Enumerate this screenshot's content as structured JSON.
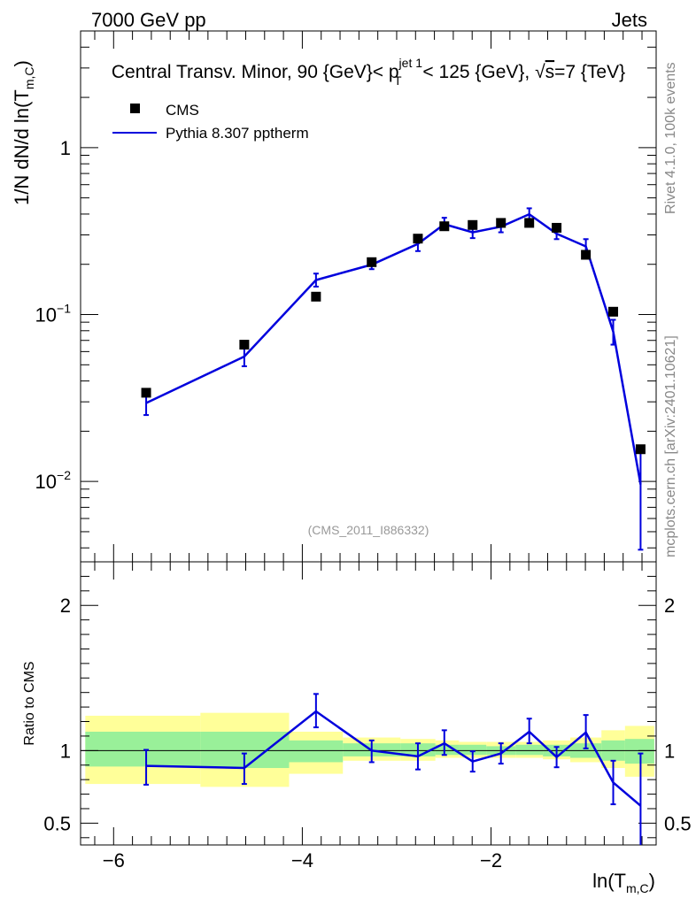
{
  "chart_data": [
    {
      "type": "scatter",
      "panel": "main",
      "header_left": "7000 GeV pp",
      "header_right": "Jets",
      "title": "Central Transv. Minor, 90 {GeV}< p_T^{jet 1} < 125 {GeV}, √s=7 {TeV}",
      "title_parts": {
        "before": "Central Transv. Minor, 90 {GeV}< p",
        "sup": "jet 1",
        "sub": "T",
        "after": " < 125 {GeV}, ",
        "sqrt_sign": "√",
        "sqrt_arg": "s",
        "end": "=7 {TeV}"
      },
      "ylabel": "1/N   dN/d ln(T_{m,C})",
      "ylabel_parts": {
        "main": "1/N    dN/d ln(T",
        "sub": "m,C",
        "close": ")"
      },
      "yscale": "log",
      "ylim": [
        0.0033,
        5.0
      ],
      "xlim": [
        -6.35,
        -0.25
      ],
      "ytick_labels": [
        {
          "value": 1,
          "label": "1",
          "exp": ""
        },
        {
          "value": 0.1,
          "label": "10",
          "exp": "−1"
        },
        {
          "value": 0.01,
          "label": "10",
          "exp": "−2"
        }
      ],
      "legend": {
        "placement": "top-left",
        "entries": [
          "CMS",
          "Pythia 8.307 pptherm"
        ]
      },
      "watermark": "(CMS_2011_I886332)",
      "side_text_top": "Rivet 4.1.0,  100k events",
      "side_text_bottom": "mcplots.cern.ch [arXiv:2401.10621]",
      "series": [
        {
          "name": "CMS",
          "style": "square-markers",
          "color": "#000000",
          "x": [
            -5.655,
            -4.615,
            -3.855,
            -3.265,
            -2.775,
            -2.495,
            -2.195,
            -1.895,
            -1.595,
            -1.305,
            -0.995,
            -0.705,
            -0.415
          ],
          "y": [
            0.034,
            0.066,
            0.128,
            0.206,
            0.285,
            0.338,
            0.344,
            0.354,
            0.354,
            0.331,
            0.228,
            0.104,
            0.0156
          ]
        },
        {
          "name": "Pythia 8.307 pptherm",
          "style": "line",
          "color": "#0000dd",
          "x": [
            -5.655,
            -4.615,
            -3.855,
            -3.265,
            -2.775,
            -2.495,
            -2.195,
            -1.895,
            -1.595,
            -1.305,
            -0.995,
            -0.705,
            -0.415
          ],
          "y": [
            0.0295,
            0.056,
            0.161,
            0.199,
            0.265,
            0.348,
            0.311,
            0.336,
            0.399,
            0.305,
            0.256,
            0.079,
            0.0096
          ],
          "err_lo": [
            0.0045,
            0.007,
            0.014,
            0.012,
            0.025,
            0.022,
            0.024,
            0.025,
            0.03,
            0.022,
            0.025,
            0.013,
            0.0057
          ],
          "err_hi": [
            0.0055,
            0.008,
            0.015,
            0.018,
            0.024,
            0.032,
            0.027,
            0.027,
            0.034,
            0.024,
            0.027,
            0.014,
            0.006
          ]
        }
      ]
    },
    {
      "type": "line",
      "panel": "ratio",
      "ylabel": "Ratio to CMS",
      "xlabel": "ln(T_{m,C})",
      "xlabel_parts": {
        "main": "ln(T",
        "sub": "m,C",
        "close": ")"
      },
      "ylim": [
        0.35,
        2.3
      ],
      "xlim": [
        -6.35,
        -0.25
      ],
      "xticks": [
        -6,
        -4,
        -2
      ],
      "xtick_labels": [
        "−6",
        "−4",
        "−2"
      ],
      "yticks": [
        0.5,
        1,
        2
      ],
      "ytick_labels": [
        "0.5",
        "1",
        "2"
      ],
      "bands": {
        "edges": [
          -6.3,
          -5.08,
          -4.14,
          -3.57,
          -2.96,
          -2.59,
          -2.34,
          -2.05,
          -1.74,
          -1.45,
          -1.16,
          -0.83,
          -0.58,
          -0.27
        ],
        "yellow_lo": [
          0.77,
          0.75,
          0.84,
          0.93,
          0.93,
          0.95,
          0.95,
          0.95,
          0.95,
          0.94,
          0.92,
          0.88,
          0.82
        ],
        "yellow_hi": [
          1.24,
          1.26,
          1.13,
          1.09,
          1.08,
          1.07,
          1.06,
          1.06,
          1.06,
          1.07,
          1.09,
          1.14,
          1.17
        ],
        "green_lo": [
          0.89,
          0.88,
          0.92,
          0.96,
          0.96,
          0.97,
          0.97,
          0.97,
          0.97,
          0.96,
          0.95,
          0.93,
          0.91
        ],
        "green_hi": [
          1.13,
          1.13,
          1.07,
          1.05,
          1.05,
          1.04,
          1.04,
          1.03,
          1.04,
          1.04,
          1.05,
          1.07,
          1.08
        ],
        "yellow_color": "#ffff99",
        "green_color": "#99f099"
      },
      "series": [
        {
          "name": "Pythia 8.307 pptherm",
          "color": "#0000dd",
          "x": [
            -5.655,
            -4.615,
            -3.855,
            -3.265,
            -2.775,
            -2.495,
            -2.195,
            -1.895,
            -1.595,
            -1.305,
            -0.995,
            -0.705,
            -0.415
          ],
          "y": [
            0.895,
            0.88,
            1.27,
            1.0,
            0.96,
            1.05,
            0.925,
            0.98,
            1.13,
            0.955,
            1.125,
            0.78,
            0.62
          ],
          "err_lo": [
            0.13,
            0.11,
            0.11,
            0.08,
            0.09,
            0.08,
            0.07,
            0.07,
            0.08,
            0.07,
            0.11,
            0.15,
            0.3
          ],
          "err_hi": [
            0.11,
            0.1,
            0.12,
            0.07,
            0.09,
            0.09,
            0.07,
            0.07,
            0.09,
            0.07,
            0.12,
            0.15,
            0.36
          ]
        }
      ]
    }
  ]
}
